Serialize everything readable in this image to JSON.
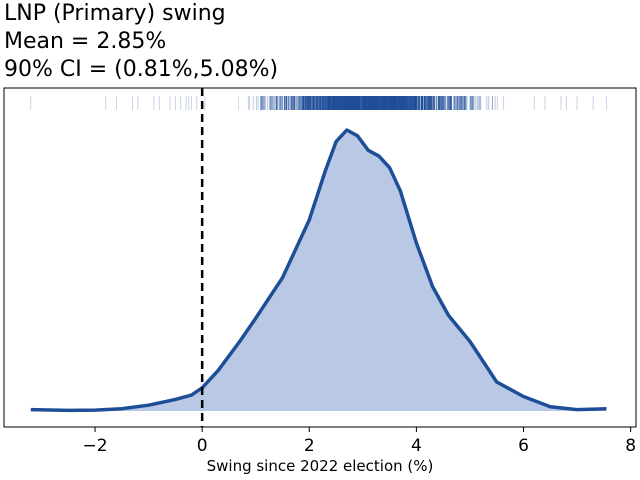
{
  "title_lines": [
    "LNP (Primary) swing",
    "Mean = 2.85%",
    "90% CI = (0.81%,5.08%)"
  ],
  "chart_data": {
    "type": "area",
    "title": "LNP (Primary) swing",
    "xlabel": "Swing since 2022 election (%)",
    "ylabel": "",
    "xlim": [
      -3.7,
      8.1
    ],
    "ylim": [
      0,
      1.05
    ],
    "xticks": [
      -2,
      0,
      2,
      4,
      6,
      8
    ],
    "xtick_labels": [
      "−2",
      "0",
      "2",
      "4",
      "6",
      "8"
    ],
    "grid": false,
    "reference_line_x": 0,
    "density": {
      "x": [
        -3.2,
        -2.5,
        -2.0,
        -1.5,
        -1.0,
        -0.5,
        -0.2,
        0.0,
        0.3,
        0.7,
        1.0,
        1.5,
        2.0,
        2.3,
        2.5,
        2.7,
        2.9,
        3.1,
        3.3,
        3.5,
        3.7,
        4.0,
        4.3,
        4.6,
        5.0,
        5.5,
        6.0,
        6.5,
        7.0,
        7.55
      ],
      "y": [
        0.005,
        0.002,
        0.003,
        0.008,
        0.02,
        0.04,
        0.055,
        0.08,
        0.14,
        0.24,
        0.32,
        0.46,
        0.66,
        0.83,
        0.93,
        0.97,
        0.95,
        0.9,
        0.88,
        0.84,
        0.76,
        0.58,
        0.43,
        0.33,
        0.24,
        0.1,
        0.05,
        0.015,
        0.005,
        0.008
      ]
    },
    "rug_samples": [
      -3.2,
      -1.8,
      -1.6,
      -1.3,
      -1.2,
      -0.9,
      -0.8,
      -0.6,
      -0.5,
      -0.4,
      -0.3,
      -0.25,
      -0.2,
      -0.1,
      0.05,
      6.2,
      6.4,
      6.7,
      6.8,
      7.0,
      7.3,
      7.55
    ],
    "dense_rug_range": [
      0.3,
      6.1
    ],
    "colors": {
      "line": "#1f4e99",
      "fill": "#b9c8e4",
      "rug": "#1f4e99",
      "vline": "#000000"
    },
    "legend": "none"
  }
}
